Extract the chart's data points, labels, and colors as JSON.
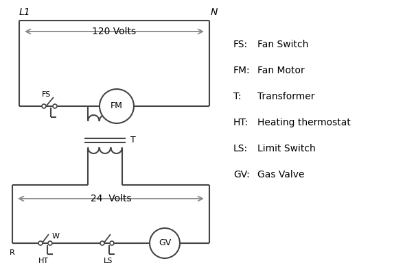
{
  "bg_color": "#ffffff",
  "line_color": "#444444",
  "arrow_color": "#888888",
  "text_color": "#000000",
  "legend_items": [
    [
      "FS:",
      "Fan Switch"
    ],
    [
      "FM:",
      "Fan Motor"
    ],
    [
      "T:",
      "Transformer"
    ],
    [
      "HT:",
      "Heating thermostat"
    ],
    [
      "LS:",
      "Limit Switch"
    ],
    [
      "GV:",
      "Gas Valve"
    ]
  ],
  "L1_label": "L1",
  "N_label": "N",
  "volts120_label": "120 Volts",
  "volts24_label": "24  Volts",
  "T_label": "T",
  "R_label": "R",
  "W_label": "W",
  "FS_label": "FS",
  "FM_label": "FM",
  "HT_label": "HT",
  "LS_label": "LS",
  "GV_label": "GV"
}
